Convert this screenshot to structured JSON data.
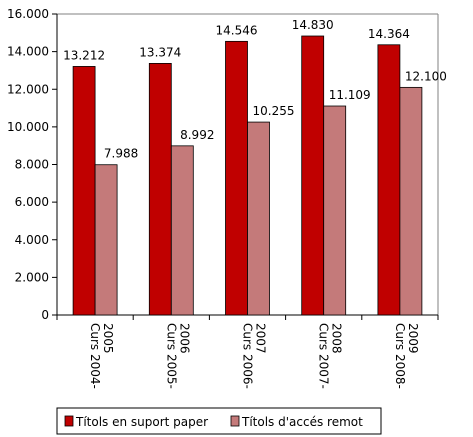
{
  "chart_data": {
    "type": "bar",
    "categories": [
      [
        "Curs 2004-",
        "2005"
      ],
      [
        "Curs 2005-",
        "2006"
      ],
      [
        "Curs 2006-",
        "2007"
      ],
      [
        "Curs 2007-",
        "2008"
      ],
      [
        "Curs 2008-",
        "2009"
      ]
    ],
    "series": [
      {
        "name": "Títols en suport paper",
        "values": [
          13212,
          13374,
          14546,
          14830,
          14364
        ],
        "labels": [
          "13.212",
          "13.374",
          "14.546",
          "14.830",
          "14.364"
        ],
        "color": "#c00000"
      },
      {
        "name": "Títols d'accés remot",
        "values": [
          7988,
          8992,
          10255,
          11109,
          12100
        ],
        "labels": [
          "7.988",
          "8.992",
          "10.255",
          "11.109",
          "12.100"
        ],
        "color": "#c47a7a"
      }
    ],
    "ylim": [
      0,
      16000
    ],
    "yticks": [
      0,
      2000,
      4000,
      6000,
      8000,
      10000,
      12000,
      14000,
      16000
    ],
    "ytick_labels": [
      "0",
      "2.000",
      "4.000",
      "6.000",
      "8.000",
      "10.000",
      "12.000",
      "14.000",
      "16.000"
    ],
    "grid": false,
    "legend_position": "bottom",
    "title": "",
    "xlabel": "",
    "ylabel": ""
  }
}
